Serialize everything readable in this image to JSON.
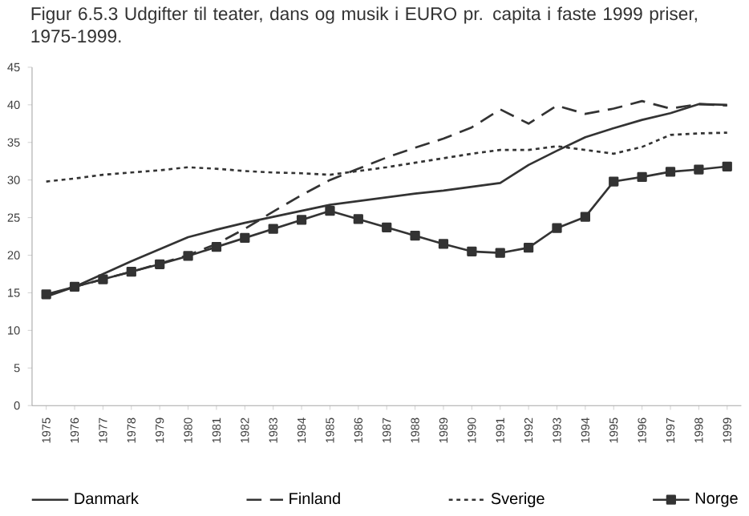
{
  "chart_data": {
    "type": "line",
    "title": "Figur 6.5.3 Udgifter til teater, dans og musik i EURO pr. capita i faste 1999 priser, 1975-1999.",
    "categories": [
      "1975",
      "1976",
      "1977",
      "1978",
      "1979",
      "1980",
      "1981",
      "1982",
      "1983",
      "1984",
      "1985",
      "1986",
      "1987",
      "1988",
      "1989",
      "1990",
      "1991",
      "1992",
      "1993",
      "1994",
      "1995",
      "1996",
      "1997",
      "1998",
      "1999"
    ],
    "ylim": [
      0,
      45
    ],
    "yticks": [
      0,
      5,
      10,
      15,
      20,
      25,
      30,
      35,
      40,
      45
    ],
    "grid": false,
    "legend": "bottom",
    "series": [
      {
        "name": "Danmark",
        "color": "#333333",
        "line_style": "solid",
        "marker": "none",
        "values": [
          14.5,
          15.8,
          17.5,
          19.2,
          20.8,
          22.4,
          23.4,
          24.3,
          25.1,
          25.9,
          26.7,
          27.2,
          27.7,
          28.2,
          28.6,
          29.1,
          29.6,
          32.0,
          33.9,
          35.7,
          36.9,
          38.0,
          38.9,
          40.1,
          40.0
        ]
      },
      {
        "name": "Finland",
        "color": "#333333",
        "line_style": "dashed",
        "marker": "none",
        "values": [
          14.7,
          15.8,
          16.8,
          17.8,
          18.9,
          20.0,
          21.5,
          23.5,
          25.8,
          28.0,
          30.0,
          31.5,
          33.0,
          34.3,
          35.5,
          37.0,
          39.4,
          37.5,
          39.9,
          38.8,
          39.5,
          40.5,
          39.5,
          40.1,
          39.9
        ]
      },
      {
        "name": "Sverige",
        "color": "#333333",
        "line_style": "dotted",
        "marker": "none",
        "values": [
          29.8,
          30.2,
          30.7,
          31.0,
          31.3,
          31.7,
          31.5,
          31.2,
          31.0,
          30.9,
          30.7,
          31.2,
          31.7,
          32.3,
          32.9,
          33.5,
          34.0,
          34.0,
          34.5,
          34.0,
          33.5,
          34.4,
          36.0,
          36.2,
          36.3
        ]
      },
      {
        "name": "Norge",
        "color": "#333333",
        "line_style": "solid",
        "marker": "square",
        "values": [
          14.8,
          15.8,
          16.8,
          17.8,
          18.8,
          19.9,
          21.1,
          22.3,
          23.5,
          24.7,
          25.9,
          24.8,
          23.7,
          22.6,
          21.5,
          20.5,
          20.3,
          21.0,
          23.6,
          25.1,
          29.8,
          30.4,
          31.1,
          31.4,
          31.8
        ]
      }
    ]
  }
}
